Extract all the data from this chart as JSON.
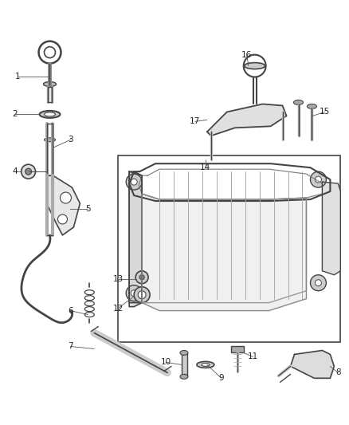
{
  "bg_color": "#ffffff",
  "line_color": "#444444",
  "label_color": "#222222",
  "fig_width": 4.38,
  "fig_height": 5.33,
  "dpi": 100,
  "font_size": 7.5
}
